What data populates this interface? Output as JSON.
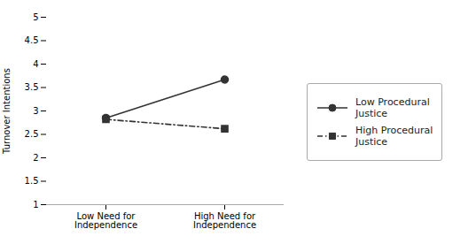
{
  "chart_data": {
    "type": "line",
    "ylabel": "Turnover Intentions",
    "categories": [
      "Low Need for\nIndependence",
      "High Need for\nIndependence"
    ],
    "series": [
      {
        "name": "Low Procedural\nJustice",
        "color": "#333333",
        "values": [
          2.85,
          3.67
        ],
        "marker": "circle",
        "line_style": "solid"
      },
      {
        "name": "High Procedural\nJustice",
        "color": "#333333",
        "values": [
          2.82,
          2.62
        ],
        "marker": "square",
        "line_style": "dashdot"
      }
    ],
    "ylim": [
      1,
      5
    ],
    "yticks": [
      1,
      1.5,
      2,
      2.5,
      3,
      3.5,
      4,
      4.5,
      5
    ],
    "grid": false,
    "legend": "right"
  }
}
